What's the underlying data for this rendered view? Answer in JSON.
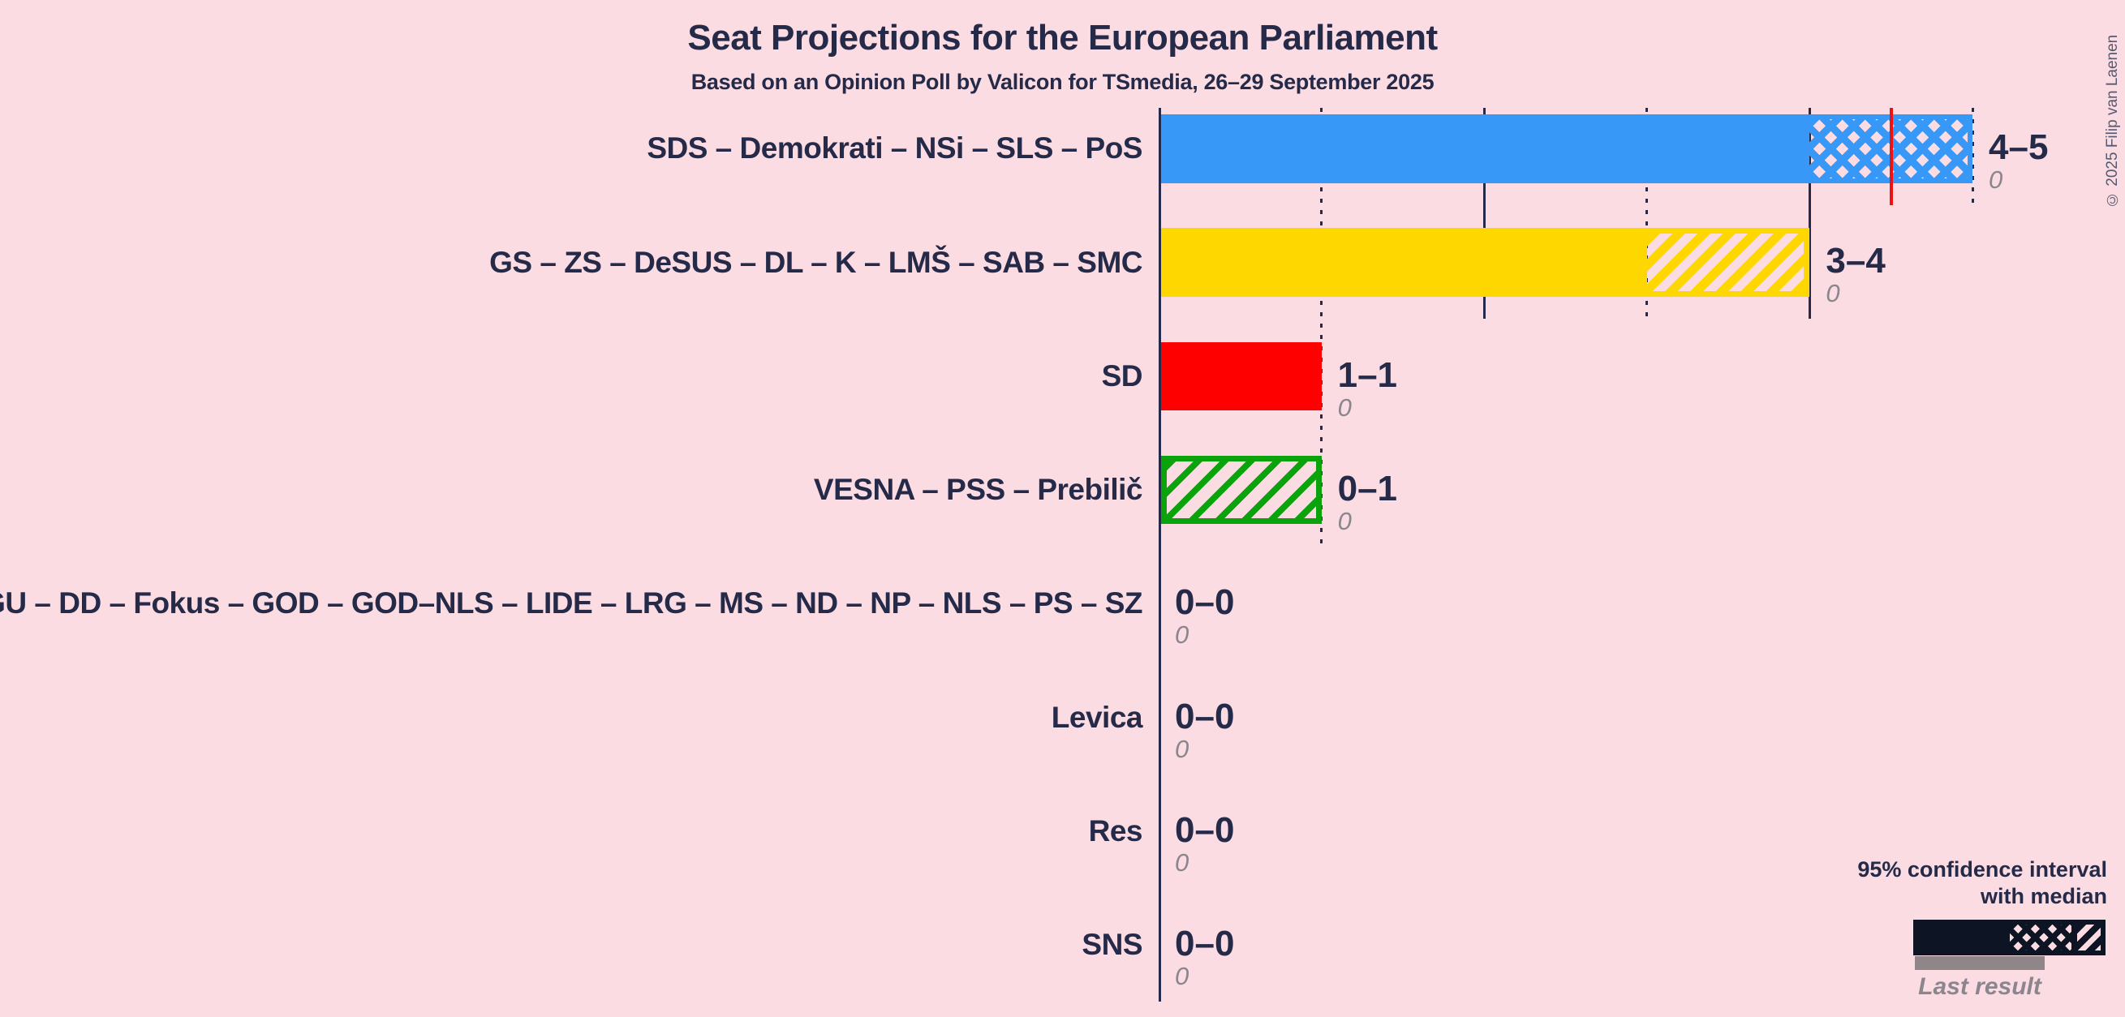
{
  "chart_data": {
    "type": "bar",
    "title": "Seat Projections for the European Parliament",
    "subtitle": "Based on an Opinion Poll by Valicon for TSmedia, 26–29 September 2025",
    "x_axis": {
      "min": 0,
      "max": 5,
      "tick_step": 1,
      "solid_gridlines": [
        0,
        2,
        4
      ],
      "dotted_gridlines": [
        1,
        3,
        5
      ]
    },
    "parties": [
      {
        "label": "SDS – Demokrati – NSi – SLS – PoS",
        "ci_label": "4–5",
        "ci_low": 4,
        "ci_high": 5,
        "median": 4.5,
        "last_result": 0,
        "last_result_label": "0",
        "color": "#3898f8",
        "hatch": "cross"
      },
      {
        "label": "GS – ZS – DeSUS – DL – K – LMŠ – SAB – SMC",
        "ci_label": "3–4",
        "ci_low": 3,
        "ci_high": 4,
        "median": null,
        "last_result": 0,
        "last_result_label": "0",
        "color": "#ffd700",
        "hatch": "diag"
      },
      {
        "label": "SD",
        "ci_label": "1–1",
        "ci_low": 1,
        "ci_high": 1,
        "median": null,
        "last_result": 0,
        "last_result_label": "0",
        "color": "#ff0000",
        "hatch": "none"
      },
      {
        "label": "VESNA – PSS – Prebilič",
        "ci_label": "0–1",
        "ci_low": 0,
        "ci_high": 1,
        "median": null,
        "last_result": 0,
        "last_result_label": "0",
        "color": "#0ba30b",
        "hatch": "diag-outline"
      },
      {
        "label": "GU – DD – Fokus – GOD – GOD–NLS – LIDE – LRG – MS – ND – NP – NLS – PS – SZ",
        "ci_label": "0–0",
        "ci_low": 0,
        "ci_high": 0,
        "median": null,
        "last_result": 0,
        "last_result_label": "0",
        "color": "#252a48",
        "hatch": "none"
      },
      {
        "label": "Levica",
        "ci_label": "0–0",
        "ci_low": 0,
        "ci_high": 0,
        "median": null,
        "last_result": 0,
        "last_result_label": "0",
        "color": "#252a48",
        "hatch": "none"
      },
      {
        "label": "Res",
        "ci_label": "0–0",
        "ci_low": 0,
        "ci_high": 0,
        "median": null,
        "last_result": 0,
        "last_result_label": "0",
        "color": "#252a48",
        "hatch": "none"
      },
      {
        "label": "SNS",
        "ci_label": "0–0",
        "ci_low": 0,
        "ci_high": 0,
        "median": null,
        "last_result": 0,
        "last_result_label": "0",
        "color": "#252a48",
        "hatch": "none"
      }
    ],
    "legend": {
      "title_line1": "95% confidence interval",
      "title_line2": "with median",
      "last_result_caption": "Last result"
    },
    "copyright": "© 2025 Filip van Laenen"
  }
}
